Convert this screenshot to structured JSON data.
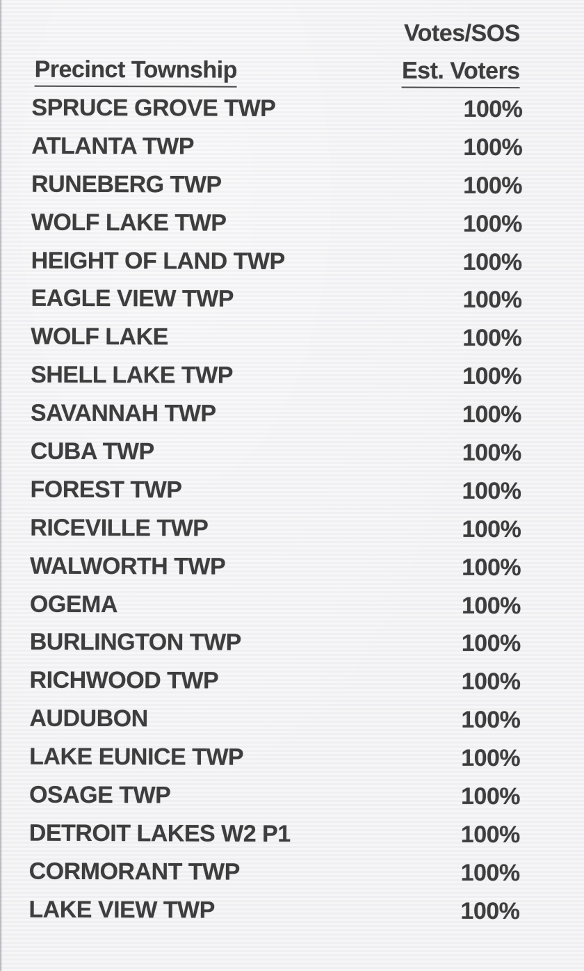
{
  "page": {
    "background_color": "#f2f2f4",
    "text_color": "#3d3d3d"
  },
  "table": {
    "column_headers": {
      "precinct": "Precinct Township",
      "value_line1": "Votes/SOS",
      "value_line2": "Est. Voters"
    },
    "rows": [
      {
        "precinct": "SPRUCE GROVE TWP",
        "value": "100%"
      },
      {
        "precinct": "ATLANTA TWP",
        "value": "100%"
      },
      {
        "precinct": "RUNEBERG TWP",
        "value": "100%"
      },
      {
        "precinct": "WOLF LAKE TWP",
        "value": "100%"
      },
      {
        "precinct": "HEIGHT OF LAND TWP",
        "value": "100%"
      },
      {
        "precinct": "EAGLE VIEW TWP",
        "value": "100%"
      },
      {
        "precinct": "WOLF LAKE",
        "value": "100%"
      },
      {
        "precinct": "SHELL LAKE TWP",
        "value": "100%"
      },
      {
        "precinct": "SAVANNAH TWP",
        "value": "100%"
      },
      {
        "precinct": "CUBA TWP",
        "value": "100%"
      },
      {
        "precinct": "FOREST TWP",
        "value": "100%"
      },
      {
        "precinct": "RICEVILLE TWP",
        "value": "100%"
      },
      {
        "precinct": "WALWORTH TWP",
        "value": "100%"
      },
      {
        "precinct": "OGEMA",
        "value": "100%"
      },
      {
        "precinct": "BURLINGTON TWP",
        "value": "100%"
      },
      {
        "precinct": "RICHWOOD TWP",
        "value": "100%"
      },
      {
        "precinct": "AUDUBON",
        "value": "100%"
      },
      {
        "precinct": "LAKE EUNICE TWP",
        "value": "100%"
      },
      {
        "precinct": "OSAGE TWP",
        "value": "100%"
      },
      {
        "precinct": "DETROIT LAKES W2 P1",
        "value": "100%"
      },
      {
        "precinct": "CORMORANT TWP",
        "value": "100%"
      },
      {
        "precinct": "LAKE VIEW TWP",
        "value": "100%"
      }
    ]
  }
}
